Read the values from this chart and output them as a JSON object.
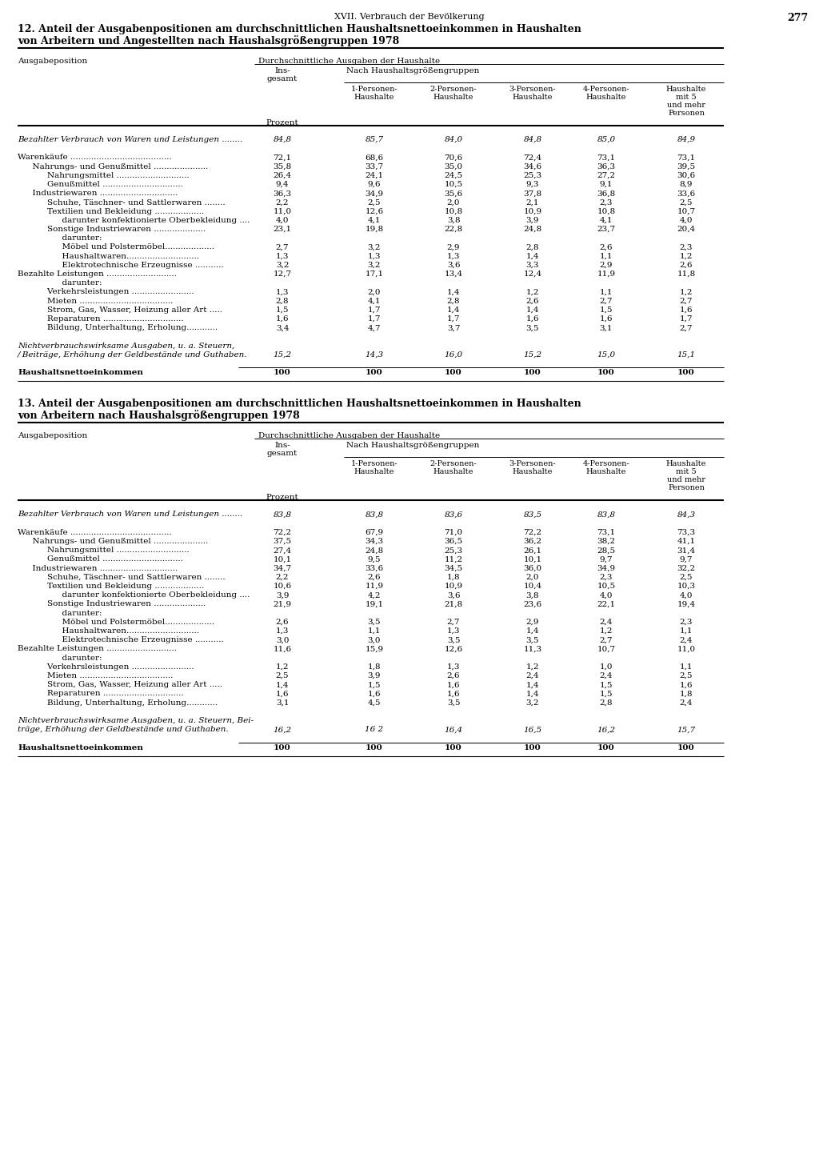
{
  "page_header": "XVII. Verbrauch der Bevölkerung",
  "page_number": "277",
  "table1": {
    "title_line1": "12. Anteil der Ausgabenpositionen am durchschnittlichen Haushaltsnettoeinkommen in Haushalten",
    "title_line2": "von Arbeitern und Angestellten nach Haushalsgrößengruppen 1978",
    "rows": [
      {
        "label": "Bezahlter Verbrauch von Waren und Leistungen ........",
        "vals": [
          "84,8",
          "85,7",
          "84,0",
          "84,8",
          "85,0",
          "84,9"
        ],
        "italic": true,
        "indent": 0
      },
      {
        "label": "",
        "vals": [
          "",
          "",
          "",
          "",
          "",
          ""
        ],
        "indent": 0
      },
      {
        "label": "Warenkäufe .......................................",
        "vals": [
          "72,1",
          "68,6",
          "70,6",
          "72,4",
          "73,1",
          "73,1"
        ],
        "italic": false,
        "indent": 0
      },
      {
        "label": "  Nahrungs- und Genußmittel .....................",
        "vals": [
          "35,8",
          "33,7",
          "35,0",
          "34,6",
          "36,3",
          "39,5"
        ],
        "italic": false,
        "indent": 1
      },
      {
        "label": "    Nahrungsmittel ............................",
        "vals": [
          "26,4",
          "24,1",
          "24,5",
          "25,3",
          "27,2",
          "30,6"
        ],
        "italic": false,
        "indent": 2
      },
      {
        "label": "    Genußmittel ...............................",
        "vals": [
          "9,4",
          "9,6",
          "10,5",
          "9,3",
          "9,1",
          "8,9"
        ],
        "italic": false,
        "indent": 2
      },
      {
        "label": "  Industriewaren ..............................",
        "vals": [
          "36,3",
          "34,9",
          "35,6",
          "37,8",
          "36,8",
          "33,6"
        ],
        "italic": false,
        "indent": 1
      },
      {
        "label": "    Schuhe, Täschner- und Sattlerwaren ........",
        "vals": [
          "2,2",
          "2,5",
          "2,0",
          "2,1",
          "2,3",
          "2,5"
        ],
        "italic": false,
        "indent": 2
      },
      {
        "label": "    Textilien und Bekleidung ...................",
        "vals": [
          "11,0",
          "12,6",
          "10,8",
          "10,9",
          "10,8",
          "10,7"
        ],
        "italic": false,
        "indent": 2
      },
      {
        "label": "      darunter konfektionierte Oberbekleidung ....",
        "vals": [
          "4,0",
          "4,1",
          "3,8",
          "3,9",
          "4,1",
          "4,0"
        ],
        "italic": false,
        "indent": 3
      },
      {
        "label": "    Sonstige Industriewaren ....................",
        "vals": [
          "23,1",
          "19,8",
          "22,8",
          "24,8",
          "23,7",
          "20,4"
        ],
        "italic": false,
        "indent": 2
      },
      {
        "label": "      darunter:",
        "vals": [
          "",
          "",
          "",
          "",
          "",
          ""
        ],
        "italic": false,
        "indent": 3
      },
      {
        "label": "      Möbel und Polstermöbel...................",
        "vals": [
          "2,7",
          "3,2",
          "2,9",
          "2,8",
          "2,6",
          "2,3"
        ],
        "italic": false,
        "indent": 3
      },
      {
        "label": "      Haushaltwaren............................",
        "vals": [
          "1,3",
          "1,3",
          "1,3",
          "1,4",
          "1,1",
          "1,2"
        ],
        "italic": false,
        "indent": 3
      },
      {
        "label": "      Elektrotechnische Erzeugnisse ...........",
        "vals": [
          "3,2",
          "3,2",
          "3,6",
          "3,3",
          "2,9",
          "2,6"
        ],
        "italic": false,
        "indent": 3
      },
      {
        "label": "Bezahlte Leistungen ...........................",
        "vals": [
          "12,7",
          "17,1",
          "13,4",
          "12,4",
          "11,9",
          "11,8"
        ],
        "italic": false,
        "indent": 0
      },
      {
        "label": "      darunter:",
        "vals": [
          "",
          "",
          "",
          "",
          "",
          ""
        ],
        "italic": false,
        "indent": 3
      },
      {
        "label": "    Verkehrsleistungen ........................",
        "vals": [
          "1,3",
          "2,0",
          "1,4",
          "1,2",
          "1,1",
          "1,2"
        ],
        "italic": false,
        "indent": 2
      },
      {
        "label": "    Mieten ....................................",
        "vals": [
          "2,8",
          "4,1",
          "2,8",
          "2,6",
          "2,7",
          "2,7"
        ],
        "italic": false,
        "indent": 2
      },
      {
        "label": "    Strom, Gas, Wasser, Heizung aller Art .....",
        "vals": [
          "1,5",
          "1,7",
          "1,4",
          "1,4",
          "1,5",
          "1,6"
        ],
        "italic": false,
        "indent": 2
      },
      {
        "label": "    Reparaturen ...............................",
        "vals": [
          "1,6",
          "1,7",
          "1,7",
          "1,6",
          "1,6",
          "1,7"
        ],
        "italic": false,
        "indent": 2
      },
      {
        "label": "    Bildung, Unterhaltung, Erholung............",
        "vals": [
          "3,4",
          "4,7",
          "3,7",
          "3,5",
          "3,1",
          "2,7"
        ],
        "italic": false,
        "indent": 2
      },
      {
        "label": "",
        "vals": [
          "",
          "",
          "",
          "",
          "",
          ""
        ],
        "indent": 0
      },
      {
        "label": "Nichtverbrauchswirksame Ausgaben, u. a. Steuern,",
        "vals": [
          "",
          "",
          "",
          "",
          "",
          ""
        ],
        "italic": true,
        "indent": 0,
        "novals": true
      },
      {
        "label": "/ Beiträge, Erhöhung der Geldbestände und Guthaben.",
        "vals": [
          "15,2",
          "14,3",
          "16,0",
          "15,2",
          "15,0",
          "15,1"
        ],
        "italic": true,
        "indent": 0
      },
      {
        "label": "",
        "vals": [
          "",
          "",
          "",
          "",
          "",
          ""
        ],
        "indent": 0
      },
      {
        "label": "Haushaltsnettoeinkommen",
        "vals": [
          "100",
          "100",
          "100",
          "100",
          "100",
          "100"
        ],
        "italic": false,
        "bold": true,
        "indent": 0,
        "underline_before": true
      }
    ]
  },
  "table2": {
    "title_line1": "13. Anteil der Ausgabenpositionen am durchschnittlichen Haushaltsnettoeinkommen in Haushalten",
    "title_line2": "von Arbeitern nach Haushalsgrößengruppen 1978",
    "rows": [
      {
        "label": "Bezahlter Verbrauch von Waren und Leistungen ........",
        "vals": [
          "83,8",
          "83,8",
          "83,6",
          "83,5",
          "83,8",
          "84,3"
        ],
        "italic": true,
        "indent": 0
      },
      {
        "label": "",
        "vals": [
          "",
          "",
          "",
          "",
          "",
          ""
        ],
        "indent": 0
      },
      {
        "label": "Warenkäufe .......................................",
        "vals": [
          "72,2",
          "67,9",
          "71,0",
          "72,2",
          "73,1",
          "73,3"
        ],
        "italic": false,
        "indent": 0
      },
      {
        "label": "  Nahrungs- und Genußmittel .....................",
        "vals": [
          "37,5",
          "34,3",
          "36,5",
          "36,2",
          "38,2",
          "41,1"
        ],
        "italic": false,
        "indent": 1
      },
      {
        "label": "    Nahrungsmittel ............................",
        "vals": [
          "27,4",
          "24,8",
          "25,3",
          "26,1",
          "28,5",
          "31,4"
        ],
        "italic": false,
        "indent": 2
      },
      {
        "label": "    Genußmittel ...............................",
        "vals": [
          "10,1",
          "9,5",
          "11,2",
          "10,1",
          "9,7",
          "9,7"
        ],
        "italic": false,
        "indent": 2
      },
      {
        "label": "  Industriewaren ..............................",
        "vals": [
          "34,7",
          "33,6",
          "34,5",
          "36,0",
          "34,9",
          "32,2"
        ],
        "italic": false,
        "indent": 1
      },
      {
        "label": "    Schuhe, Täschner- und Sattlerwaren ........",
        "vals": [
          "2,2",
          "2,6",
          "1,8",
          "2,0",
          "2,3",
          "2,5"
        ],
        "italic": false,
        "indent": 2
      },
      {
        "label": "    Textilien und Bekleidung ...................",
        "vals": [
          "10,6",
          "11,9",
          "10,9",
          "10,4",
          "10,5",
          "10,3"
        ],
        "italic": false,
        "indent": 2
      },
      {
        "label": "      darunter konfektionierte Oberbekleidung ....",
        "vals": [
          "3,9",
          "4,2",
          "3,6",
          "3,8",
          "4,0",
          "4,0"
        ],
        "italic": false,
        "indent": 3
      },
      {
        "label": "    Sonstige Industriewaren ....................",
        "vals": [
          "21,9",
          "19,1",
          "21,8",
          "23,6",
          "22,1",
          "19,4"
        ],
        "italic": false,
        "indent": 2
      },
      {
        "label": "      darunter:",
        "vals": [
          "",
          "",
          "",
          "",
          "",
          ""
        ],
        "italic": false,
        "indent": 3
      },
      {
        "label": "      Möbel und Polstermöbel...................",
        "vals": [
          "2,6",
          "3,5",
          "2,7",
          "2,9",
          "2,4",
          "2,3"
        ],
        "italic": false,
        "indent": 3
      },
      {
        "label": "      Haushaltwaren............................",
        "vals": [
          "1,3",
          "1,1",
          "1,3",
          "1,4",
          "1,2",
          "1,1"
        ],
        "italic": false,
        "indent": 3
      },
      {
        "label": "      Elektrotechnische Erzeugnisse ...........",
        "vals": [
          "3,0",
          "3,0",
          "3,5",
          "3,5",
          "2,7",
          "2,4"
        ],
        "italic": false,
        "indent": 3
      },
      {
        "label": "Bezahlte Leistungen ...........................",
        "vals": [
          "11,6",
          "15,9",
          "12,6",
          "11,3",
          "10,7",
          "11,0"
        ],
        "italic": false,
        "indent": 0
      },
      {
        "label": "      darunter:",
        "vals": [
          "",
          "",
          "",
          "",
          "",
          ""
        ],
        "italic": false,
        "indent": 3
      },
      {
        "label": "    Verkehrsleistungen ........................",
        "vals": [
          "1,2",
          "1,8",
          "1,3",
          "1,2",
          "1,0",
          "1,1"
        ],
        "italic": false,
        "indent": 2
      },
      {
        "label": "    Mieten ....................................",
        "vals": [
          "2,5",
          "3,9",
          "2,6",
          "2,4",
          "2,4",
          "2,5"
        ],
        "italic": false,
        "indent": 2
      },
      {
        "label": "    Strom, Gas, Wasser, Heizung aller Art .....",
        "vals": [
          "1,4",
          "1,5",
          "1,6",
          "1,4",
          "1,5",
          "1,6"
        ],
        "italic": false,
        "indent": 2
      },
      {
        "label": "    Reparaturen ...............................",
        "vals": [
          "1,6",
          "1,6",
          "1,6",
          "1,4",
          "1,5",
          "1,8"
        ],
        "italic": false,
        "indent": 2
      },
      {
        "label": "    Bildung, Unterhaltung, Erholung............",
        "vals": [
          "3,1",
          "4,5",
          "3,5",
          "3,2",
          "2,8",
          "2,4"
        ],
        "italic": false,
        "indent": 2
      },
      {
        "label": "",
        "vals": [
          "",
          "",
          "",
          "",
          "",
          ""
        ],
        "indent": 0
      },
      {
        "label": "Nichtverbrauchswirksame Ausgaben, u. a. Steuern, Bei-",
        "vals": [
          "",
          "",
          "",
          "",
          "",
          ""
        ],
        "italic": true,
        "indent": 0,
        "novals": true
      },
      {
        "label": "träge, Erhöhung der Geldbestände und Guthaben.",
        "vals": [
          "16,2",
          "16 2",
          "16,4",
          "16,5",
          "16,2",
          "15,7"
        ],
        "italic": true,
        "indent": 0
      },
      {
        "label": "",
        "vals": [
          "",
          "",
          "",
          "",
          "",
          ""
        ],
        "indent": 0
      },
      {
        "label": "Haushaltsnettoeinkommen",
        "vals": [
          "100",
          "100",
          "100",
          "100",
          "100",
          "100"
        ],
        "italic": false,
        "bold": true,
        "indent": 0,
        "underline_before": true
      }
    ]
  }
}
